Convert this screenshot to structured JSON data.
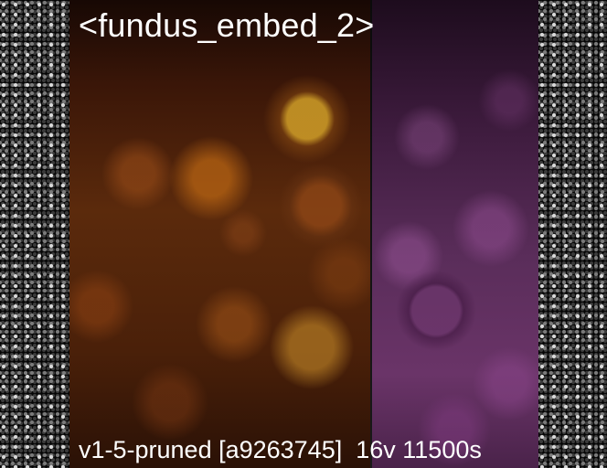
{
  "title": "<fundus_embed_2>",
  "caption": {
    "model": "v1-5-pruned [a9263745]",
    "settings": "16v 11500s"
  },
  "colors": {
    "left_panel": "#5b2a0c",
    "right_panel": "#5a2d5a",
    "side_pattern": "#d9d9d9"
  }
}
